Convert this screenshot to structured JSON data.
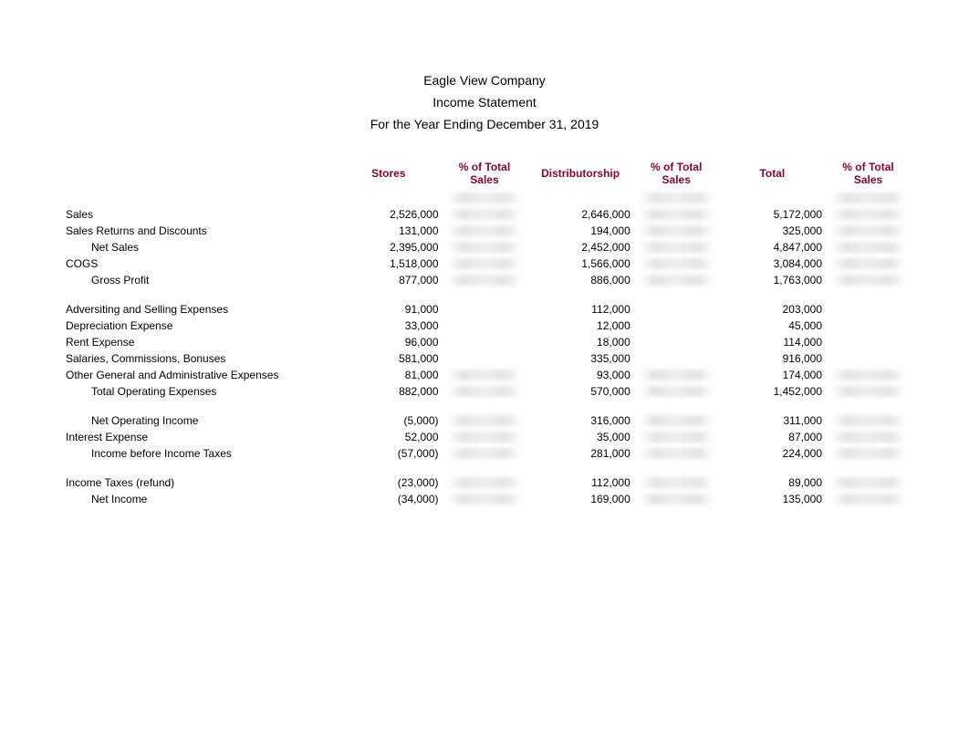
{
  "header": {
    "company": "Eagle View Company",
    "statement": "Income Statement",
    "period": "For the Year Ending December 31, 2019"
  },
  "columns": {
    "stores": "Stores",
    "pct1": "% of Total Sales",
    "dist": "Distributorship",
    "pct2": "% of Total Sales",
    "total": "Total",
    "pct3": "% of Total Sales"
  },
  "rows": {
    "sales": {
      "label": "Sales",
      "stores": "2,526,000",
      "dist": "2,646,000",
      "total": "5,172,000"
    },
    "returns": {
      "label": "Sales Returns and Discounts",
      "stores": "131,000",
      "dist": "194,000",
      "total": "325,000"
    },
    "net_sales": {
      "label": "Net Sales",
      "stores": "2,395,000",
      "dist": "2,452,000",
      "total": "4,847,000"
    },
    "cogs": {
      "label": "COGS",
      "stores": "1,518,000",
      "dist": "1,566,000",
      "total": "3,084,000"
    },
    "gross_profit": {
      "label": "Gross Profit",
      "stores": "877,000",
      "dist": "886,000",
      "total": "1,763,000"
    },
    "adv_sell": {
      "label": "Adversiting and Selling Expenses",
      "stores": "91,000",
      "dist": "112,000",
      "total": "203,000"
    },
    "depr": {
      "label": "Depreciation Expense",
      "stores": "33,000",
      "dist": "12,000",
      "total": "45,000"
    },
    "rent": {
      "label": "Rent Expense",
      "stores": "96,000",
      "dist": "18,000",
      "total": "114,000"
    },
    "sal": {
      "label": "Salaries, Commissions, Bonuses",
      "stores": "581,000",
      "dist": "335,000",
      "total": "916,000"
    },
    "other_ga": {
      "label": "Other General and Administrative Expenses",
      "stores": "81,000",
      "dist": "93,000",
      "total": "174,000"
    },
    "tot_opex": {
      "label": "Total Operating Expenses",
      "stores": "882,000",
      "dist": "570,000",
      "total": "1,452,000"
    },
    "net_op_inc": {
      "label": "Net Operating Income",
      "stores": "(5,000)",
      "dist": "316,000",
      "total": "311,000"
    },
    "int_exp": {
      "label": "Interest Expense",
      "stores": "52,000",
      "dist": "35,000",
      "total": "87,000"
    },
    "inc_before_tax": {
      "label": "Income before Income Taxes",
      "stores": "(57,000)",
      "dist": "281,000",
      "total": "224,000"
    },
    "taxes": {
      "label": "Income Taxes (refund)",
      "stores": "(23,000)",
      "dist": "112,000",
      "total": "89,000"
    },
    "net_income": {
      "label": "Net Income",
      "stores": "(34,000)",
      "dist": "169,000",
      "total": "135,000"
    }
  },
  "style": {
    "header_color": "#8a0235",
    "text_color": "#000000",
    "font_family": "Verdana",
    "title_fontsize": 14,
    "body_fontsize": 12,
    "blur_bg": "#e6e6e6"
  }
}
